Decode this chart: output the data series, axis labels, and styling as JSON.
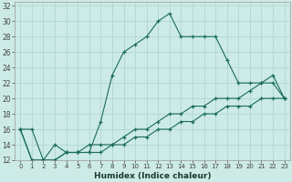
{
  "xlabel": "Humidex (Indice chaleur)",
  "ylabel": "",
  "background_color": "#cceae6",
  "grid_color": "#aad4cf",
  "line_color": "#1a6b5e",
  "hours": [
    0,
    1,
    2,
    3,
    4,
    5,
    6,
    7,
    8,
    9,
    10,
    11,
    12,
    13,
    14,
    15,
    16,
    17,
    18,
    19,
    20,
    21,
    22,
    23
  ],
  "line1": [
    16,
    16,
    12,
    14,
    13,
    13,
    13,
    17,
    23,
    26,
    27,
    28,
    30,
    31,
    28,
    28,
    28,
    28,
    25,
    22,
    22,
    22,
    23,
    20
  ],
  "line2": [
    16,
    12,
    12,
    12,
    13,
    13,
    14,
    14,
    14,
    15,
    16,
    16,
    17,
    18,
    18,
    19,
    19,
    20,
    20,
    20,
    21,
    22,
    22,
    20
  ],
  "line3": [
    16,
    12,
    12,
    12,
    13,
    13,
    13,
    13,
    14,
    14,
    15,
    15,
    16,
    16,
    17,
    17,
    18,
    18,
    19,
    19,
    19,
    20,
    20,
    20
  ],
  "xlim": [
    0,
    23
  ],
  "ylim": [
    12,
    32
  ],
  "yticks": [
    12,
    14,
    16,
    18,
    20,
    22,
    24,
    26,
    28,
    30,
    32
  ],
  "xticks": [
    0,
    1,
    2,
    3,
    4,
    5,
    6,
    7,
    8,
    9,
    10,
    11,
    12,
    13,
    14,
    15,
    16,
    17,
    18,
    19,
    20,
    21,
    22,
    23
  ]
}
